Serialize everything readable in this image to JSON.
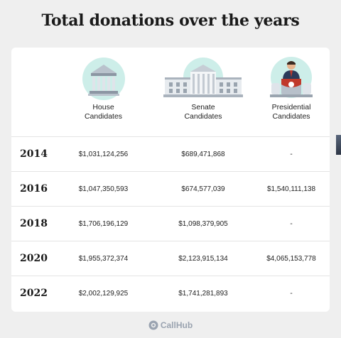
{
  "title": "Total donations over the years",
  "columns": [
    {
      "line1": "House",
      "line2": "Candidates",
      "icon": "capitol-building-icon"
    },
    {
      "line1": "Senate",
      "line2": "Candidates",
      "icon": "white-house-icon"
    },
    {
      "line1": "Presidential",
      "line2": "Candidates",
      "icon": "podium-speaker-icon"
    }
  ],
  "rows": [
    {
      "year": "2014",
      "house": "$1,031,124,256",
      "senate": "$689,471,868",
      "presidential": "-"
    },
    {
      "year": "2016",
      "house": "$1,047,350,593",
      "senate": "$674,577,039",
      "presidential": "$1,540,111,138"
    },
    {
      "year": "2018",
      "house": "$1,706,196,129",
      "senate": "$1,098,379,905",
      "presidential": "-"
    },
    {
      "year": "2020",
      "house": "$1,955,372,374",
      "senate": "$2,123,915,134",
      "presidential": "$4,065,153,778"
    },
    {
      "year": "2022",
      "house": "$2,002,129,925",
      "senate": "$1,741,281,893",
      "presidential": "-"
    }
  ],
  "footer": {
    "brand": "CallHub"
  },
  "colors": {
    "accent_circle": "#cdeee9",
    "background": "#efefef",
    "card": "#ffffff"
  },
  "chart_data": {
    "type": "table",
    "title": "Total donations over the years",
    "columns": [
      "House Candidates",
      "Senate Candidates",
      "Presidential Candidates"
    ],
    "categories": [
      "2014",
      "2016",
      "2018",
      "2020",
      "2022"
    ],
    "series": [
      {
        "name": "House Candidates",
        "values": [
          1031124256,
          1047350593,
          1706196129,
          1955372374,
          2002129925
        ]
      },
      {
        "name": "Senate Candidates",
        "values": [
          689471868,
          674577039,
          1098379905,
          2123915134,
          1741281893
        ]
      },
      {
        "name": "Presidential Candidates",
        "values": [
          null,
          1540111138,
          null,
          4065153778,
          null
        ]
      }
    ]
  }
}
